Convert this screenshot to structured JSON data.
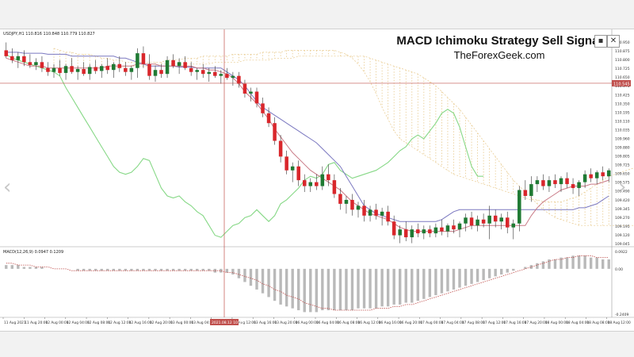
{
  "header": {
    "symbol_info": "USDJPY,H1  110.816 110.848 110.779 110.827",
    "title": "MACD Ichimoku Strategy Sell Signal",
    "website": "TheForexGeek.com",
    "minimize_label": "▪",
    "close_label": "✕"
  },
  "indicator_info": "MACD(12,26,9) 0.0947 0.1209",
  "colors": {
    "bull": "#1f7a33",
    "bear": "#d9262b",
    "kijun": "#7b78c0",
    "tenkan": "#c97a86",
    "chikou": "#86d886",
    "cloud": "#e8c98c",
    "crosshair": "#c0504d",
    "macd_hist": "#b9b9b9",
    "macd_signal": "#c0504d"
  },
  "price_scale": [
    "110.950",
    "110.875",
    "110.800",
    "110.725",
    "110.650",
    "110.575",
    "110.425",
    "110.350",
    "110.195",
    "110.110",
    "110.035",
    "109.960",
    "109.880",
    "109.805",
    "109.725",
    "109.650",
    "109.575",
    "109.490",
    "109.420",
    "109.345",
    "109.270",
    "109.195",
    "109.120",
    "109.045"
  ],
  "price_label": "110.545",
  "macd_scale": {
    "top": "0.0922",
    "zero": "0.00",
    "bottom": "-0.2409"
  },
  "time_labels": [
    "11 Aug 2021",
    "11 Aug 20:00",
    "12 Aug 00:00",
    "12 Aug 04:00",
    "12 Aug 08:00",
    "12 Aug 12:00",
    "12 Aug 16:00",
    "12 Aug 20:00",
    "13 Aug 00:00",
    "13 Aug 04:00",
    "13 Aug 08:00",
    "13 Aug 12:00",
    "13 Aug 16:00",
    "13 Aug 20:00",
    "16 Aug 00:00",
    "16 Aug 04:00",
    "16 Aug 08:00",
    "16 Aug 12:00",
    "16 Aug 16:00",
    "16 Aug 20:00",
    "17 Aug 00:00",
    "17 Aug 04:00",
    "17 Aug 08:00",
    "17 Aug 12:00",
    "17 Aug 16:00",
    "17 Aug 20:00",
    "18 Aug 00:00",
    "18 Aug 04:00",
    "18 Aug 08:00",
    "18 Aug 12:00"
  ],
  "crosshair_time": "2021.08.12 10:00",
  "candles": [
    [
      110.88,
      110.96,
      110.8,
      110.82
    ],
    [
      110.82,
      110.9,
      110.75,
      110.78
    ],
    [
      110.78,
      110.86,
      110.7,
      110.82
    ],
    [
      110.82,
      110.88,
      110.72,
      110.76
    ],
    [
      110.76,
      110.84,
      110.7,
      110.73
    ],
    [
      110.73,
      110.8,
      110.68,
      110.76
    ],
    [
      110.76,
      110.82,
      110.66,
      110.7
    ],
    [
      110.7,
      110.76,
      110.62,
      110.66
    ],
    [
      110.66,
      110.74,
      110.6,
      110.7
    ],
    [
      110.7,
      110.78,
      110.62,
      110.65
    ],
    [
      110.65,
      110.74,
      110.58,
      110.72
    ],
    [
      110.72,
      110.8,
      110.64,
      110.66
    ],
    [
      110.66,
      110.72,
      110.58,
      110.69
    ],
    [
      110.69,
      110.76,
      110.62,
      110.64
    ],
    [
      110.64,
      110.74,
      110.58,
      110.71
    ],
    [
      110.71,
      110.78,
      110.64,
      110.67
    ],
    [
      110.67,
      110.74,
      110.6,
      110.72
    ],
    [
      110.72,
      110.8,
      110.64,
      110.68
    ],
    [
      110.68,
      110.76,
      110.6,
      110.74
    ],
    [
      110.74,
      110.82,
      110.66,
      110.7
    ],
    [
      110.7,
      110.76,
      110.62,
      110.66
    ],
    [
      110.66,
      110.72,
      110.58,
      110.7
    ],
    [
      110.7,
      110.9,
      110.6,
      110.85
    ],
    [
      110.85,
      110.92,
      110.7,
      110.74
    ],
    [
      110.74,
      110.84,
      110.58,
      110.62
    ],
    [
      110.62,
      110.72,
      110.56,
      110.68
    ],
    [
      110.68,
      110.74,
      110.6,
      110.64
    ],
    [
      110.64,
      110.82,
      110.6,
      110.78
    ],
    [
      110.78,
      110.84,
      110.7,
      110.72
    ],
    [
      110.72,
      110.8,
      110.64,
      110.76
    ],
    [
      110.76,
      110.82,
      110.68,
      110.7
    ],
    [
      110.7,
      110.76,
      110.62,
      110.66
    ],
    [
      110.66,
      110.7,
      110.58,
      110.68
    ],
    [
      110.68,
      110.74,
      110.6,
      110.64
    ],
    [
      110.64,
      110.7,
      110.56,
      110.66
    ],
    [
      110.66,
      110.72,
      110.6,
      110.62
    ],
    [
      110.62,
      110.68,
      110.54,
      110.64
    ],
    [
      110.64,
      110.7,
      110.58,
      110.6
    ],
    [
      110.6,
      110.66,
      110.52,
      110.62
    ],
    [
      110.62,
      110.66,
      110.5,
      110.54
    ],
    [
      110.54,
      110.58,
      110.4,
      110.44
    ],
    [
      110.44,
      110.5,
      110.36,
      110.46
    ],
    [
      110.46,
      110.5,
      110.3,
      110.34
    ],
    [
      110.34,
      110.4,
      110.2,
      110.24
    ],
    [
      110.24,
      110.3,
      110.1,
      110.14
    ],
    [
      110.14,
      110.2,
      109.92,
      109.96
    ],
    [
      109.96,
      110.02,
      109.74,
      109.8
    ],
    [
      109.8,
      109.86,
      109.62,
      109.66
    ],
    [
      109.66,
      109.74,
      109.54,
      109.7
    ],
    [
      109.7,
      109.76,
      109.5,
      109.56
    ],
    [
      109.56,
      109.62,
      109.44,
      109.5
    ],
    [
      109.5,
      109.58,
      109.44,
      109.54
    ],
    [
      109.54,
      109.62,
      109.46,
      109.5
    ],
    [
      109.5,
      109.7,
      109.46,
      109.62
    ],
    [
      109.62,
      109.72,
      109.5,
      109.56
    ],
    [
      109.56,
      109.62,
      109.38,
      109.42
    ],
    [
      109.42,
      109.48,
      109.26,
      109.32
    ],
    [
      109.32,
      109.4,
      109.22,
      109.36
    ],
    [
      109.36,
      109.42,
      109.2,
      109.26
    ],
    [
      109.26,
      109.34,
      109.18,
      109.3
    ],
    [
      109.3,
      109.36,
      109.14,
      109.2
    ],
    [
      109.2,
      109.3,
      109.14,
      109.26
    ],
    [
      109.26,
      109.32,
      109.16,
      109.2
    ],
    [
      109.2,
      109.28,
      109.1,
      109.24
    ],
    [
      109.24,
      109.3,
      109.1,
      109.14
    ],
    [
      109.14,
      109.2,
      108.96,
      109.0
    ],
    [
      109.0,
      109.1,
      108.92,
      109.06
    ],
    [
      109.06,
      109.14,
      108.94,
      108.98
    ],
    [
      108.98,
      109.1,
      108.92,
      109.06
    ],
    [
      109.06,
      109.12,
      108.98,
      109.02
    ],
    [
      109.02,
      109.1,
      108.96,
      109.06
    ],
    [
      109.06,
      109.1,
      108.98,
      109.02
    ],
    [
      109.02,
      109.12,
      108.98,
      109.08
    ],
    [
      109.08,
      109.16,
      109.0,
      109.04
    ],
    [
      109.04,
      109.12,
      108.98,
      109.1
    ],
    [
      109.1,
      109.16,
      109.02,
      109.06
    ],
    [
      109.06,
      109.14,
      108.98,
      109.12
    ],
    [
      109.12,
      109.22,
      109.04,
      109.18
    ],
    [
      109.18,
      109.24,
      109.06,
      109.1
    ],
    [
      109.1,
      109.2,
      109.04,
      109.16
    ],
    [
      109.16,
      109.22,
      109.08,
      109.12
    ],
    [
      109.12,
      109.3,
      108.96,
      109.2
    ],
    [
      109.2,
      109.26,
      109.08,
      109.14
    ],
    [
      109.14,
      109.22,
      109.06,
      109.18
    ],
    [
      109.18,
      109.24,
      109.02,
      109.08
    ],
    [
      109.08,
      109.16,
      108.96,
      109.12
    ],
    [
      109.12,
      109.5,
      109.04,
      109.46
    ],
    [
      109.46,
      109.56,
      109.36,
      109.4
    ],
    [
      109.4,
      109.6,
      109.34,
      109.52
    ],
    [
      109.52,
      109.6,
      109.44,
      109.56
    ],
    [
      109.56,
      109.62,
      109.46,
      109.5
    ],
    [
      109.5,
      109.6,
      109.44,
      109.56
    ],
    [
      109.56,
      109.62,
      109.48,
      109.52
    ],
    [
      109.52,
      109.6,
      109.44,
      109.58
    ],
    [
      109.58,
      109.64,
      109.48,
      109.52
    ],
    [
      109.52,
      109.58,
      109.42,
      109.48
    ],
    [
      109.48,
      109.56,
      109.4,
      109.54
    ],
    [
      109.54,
      109.66,
      109.48,
      109.62
    ],
    [
      109.62,
      109.68,
      109.54,
      109.58
    ],
    [
      109.58,
      109.66,
      109.52,
      109.64
    ],
    [
      109.64,
      109.7,
      109.56,
      109.6
    ],
    [
      109.6,
      109.68,
      109.54,
      109.66
    ]
  ],
  "kijun": [
    110.86,
    110.86,
    110.86,
    110.85,
    110.85,
    110.85,
    110.85,
    110.84,
    110.84,
    110.84,
    110.84,
    110.82,
    110.82,
    110.82,
    110.82,
    110.82,
    110.82,
    110.82,
    110.82,
    110.8,
    110.8,
    110.78,
    110.76,
    110.74,
    110.72,
    110.72,
    110.72,
    110.72,
    110.72,
    110.71,
    110.71,
    110.71,
    110.7,
    110.7,
    110.7,
    110.7,
    110.7,
    110.66,
    110.62,
    110.58,
    110.52,
    110.44,
    110.36,
    110.3,
    110.26,
    110.22,
    110.18,
    110.14,
    110.1,
    110.06,
    110.02,
    109.98,
    109.94,
    109.88,
    109.82,
    109.76,
    109.7,
    109.6,
    109.5,
    109.4,
    109.3,
    109.26,
    109.22,
    109.2,
    109.18,
    109.16,
    109.14,
    109.14,
    109.14,
    109.14,
    109.14,
    109.14,
    109.14,
    109.16,
    109.2,
    109.24,
    109.26,
    109.26,
    109.26,
    109.26,
    109.26,
    109.26,
    109.26,
    109.26,
    109.26,
    109.26,
    109.26,
    109.26,
    109.26,
    109.26,
    109.26,
    109.26,
    109.26,
    109.26,
    109.26,
    109.26,
    109.28,
    109.28,
    109.3,
    109.32,
    109.36,
    109.4
  ],
  "tenkan": [
    110.8,
    110.78,
    110.76,
    110.74,
    110.72,
    110.72,
    110.72,
    110.7,
    110.7,
    110.7,
    110.7,
    110.7,
    110.7,
    110.7,
    110.7,
    110.7,
    110.7,
    110.72,
    110.72,
    110.72,
    110.72,
    110.72,
    110.74,
    110.74,
    110.74,
    110.74,
    110.72,
    110.72,
    110.72,
    110.72,
    110.72,
    110.72,
    110.7,
    110.7,
    110.68,
    110.68,
    110.66,
    110.64,
    110.6,
    110.54,
    110.46,
    110.4,
    110.34,
    110.26,
    110.18,
    110.08,
    110.0,
    109.92,
    109.84,
    109.78,
    109.72,
    109.66,
    109.62,
    109.58,
    109.54,
    109.5,
    109.46,
    109.4,
    109.34,
    109.3,
    109.26,
    109.22,
    109.2,
    109.18,
    109.16,
    109.12,
    109.08,
    109.06,
    109.04,
    109.04,
    109.04,
    109.04,
    109.04,
    109.04,
    109.04,
    109.04,
    109.06,
    109.08,
    109.1,
    109.1,
    109.1,
    109.1,
    109.1,
    109.1,
    109.1,
    109.1,
    109.1,
    109.1,
    109.2,
    109.28,
    109.34,
    109.38,
    109.42,
    109.46,
    109.48,
    109.5,
    109.5,
    109.5,
    109.52,
    109.52,
    109.54,
    109.56
  ],
  "chikou": [
    110.84,
    110.8,
    110.78,
    110.76,
    110.74,
    110.72,
    110.7,
    110.68,
    110.66,
    110.62,
    110.5,
    110.4,
    110.3,
    110.2,
    110.1,
    110.0,
    109.9,
    109.8,
    109.7,
    109.64,
    109.62,
    109.64,
    109.7,
    109.78,
    109.76,
    109.62,
    109.48,
    109.4,
    109.38,
    109.4,
    109.34,
    109.3,
    109.24,
    109.2,
    109.1,
    109.0,
    108.98,
    109.04,
    109.1,
    109.12,
    109.18,
    109.2,
    109.26,
    109.2,
    109.14,
    109.2,
    109.32,
    109.36,
    109.42,
    109.48,
    109.56,
    109.6,
    109.58,
    109.62,
    109.72,
    109.74,
    109.66,
    109.62,
    109.58,
    109.6,
    109.62,
    109.64,
    109.66,
    109.7,
    109.74,
    109.8,
    109.86,
    109.9,
    109.98,
    110.02,
    109.98,
    110.06,
    110.14,
    110.24,
    110.28,
    110.24,
    110.1,
    109.9,
    109.7,
    109.6,
    109.6
  ],
  "cloud_a": [
    110.9,
    110.88,
    110.86,
    110.86,
    110.84,
    110.84,
    110.84,
    110.82,
    110.8,
    110.8,
    110.78,
    110.78,
    110.76,
    110.76,
    110.76,
    110.76,
    110.76,
    110.76,
    110.76,
    110.78,
    110.78,
    110.78,
    110.8,
    110.8,
    110.8,
    110.82,
    110.82,
    110.82,
    110.82,
    110.82,
    110.84,
    110.84,
    110.84,
    110.84,
    110.84,
    110.86,
    110.86,
    110.86,
    110.86,
    110.88,
    110.88,
    110.88,
    110.88,
    110.88,
    110.88,
    110.88,
    110.88,
    110.88,
    110.86,
    110.84,
    110.8,
    110.74,
    110.66,
    110.56,
    110.44,
    110.3,
    110.18,
    110.06,
    109.98,
    109.94,
    109.9,
    109.86,
    109.82,
    109.78,
    109.74,
    109.7,
    109.66,
    109.62,
    109.6,
    109.58,
    109.56,
    109.54,
    109.52,
    109.5,
    109.48,
    109.46,
    109.44,
    109.42,
    109.4,
    109.38,
    109.36,
    109.36,
    109.34,
    109.34,
    109.34,
    109.34,
    109.36,
    109.38,
    109.4,
    109.44,
    109.48,
    109.52,
    109.56,
    109.6,
    109.62,
    109.64,
    109.66,
    109.68,
    109.7,
    109.72,
    109.74,
    109.74
  ],
  "cloud_b": [
    110.7,
    110.7,
    110.7,
    110.7,
    110.7,
    110.7,
    110.7,
    110.7,
    110.7,
    110.7,
    110.7,
    110.7,
    110.72,
    110.72,
    110.72,
    110.72,
    110.72,
    110.72,
    110.74,
    110.74,
    110.74,
    110.74,
    110.74,
    110.74,
    110.74,
    110.74,
    110.74,
    110.76,
    110.76,
    110.76,
    110.76,
    110.76,
    110.78,
    110.78,
    110.78,
    110.78,
    110.78,
    110.8,
    110.8,
    110.8,
    110.8,
    110.82,
    110.82,
    110.82,
    110.82,
    110.82,
    110.82,
    110.82,
    110.82,
    110.82,
    110.82,
    110.82,
    110.82,
    110.8,
    110.78,
    110.76,
    110.74,
    110.72,
    110.7,
    110.68,
    110.66,
    110.64,
    110.6,
    110.56,
    110.52,
    110.46,
    110.4,
    110.34,
    110.28,
    110.2,
    110.12,
    110.04,
    109.96,
    109.88,
    109.8,
    109.72,
    109.64,
    109.56,
    109.5,
    109.44,
    109.38,
    109.32,
    109.26,
    109.22,
    109.18,
    109.16,
    109.14,
    109.12,
    109.1,
    109.1,
    109.1,
    109.1,
    109.1,
    109.1,
    109.1,
    109.1,
    109.1,
    109.1,
    109.1,
    109.1,
    109.1,
    109.1
  ],
  "macd_hist": [
    0.02,
    0.02,
    0.02,
    0.01,
    0.01,
    0.01,
    0.01,
    0.0,
    0.0,
    0.0,
    0.0,
    0.0,
    -0.01,
    -0.01,
    -0.01,
    -0.01,
    -0.01,
    -0.01,
    -0.01,
    -0.01,
    -0.01,
    -0.01,
    -0.01,
    -0.01,
    -0.01,
    -0.01,
    -0.01,
    -0.01,
    -0.01,
    -0.01,
    -0.01,
    -0.01,
    -0.01,
    -0.01,
    -0.01,
    -0.02,
    -0.02,
    -0.02,
    -0.03,
    -0.05,
    -0.07,
    -0.09,
    -0.11,
    -0.13,
    -0.15,
    -0.17,
    -0.19,
    -0.2,
    -0.21,
    -0.22,
    -0.23,
    -0.23,
    -0.23,
    -0.22,
    -0.22,
    -0.22,
    -0.22,
    -0.22,
    -0.22,
    -0.21,
    -0.21,
    -0.21,
    -0.21,
    -0.2,
    -0.2,
    -0.19,
    -0.19,
    -0.18,
    -0.18,
    -0.17,
    -0.16,
    -0.15,
    -0.14,
    -0.13,
    -0.12,
    -0.11,
    -0.1,
    -0.09,
    -0.08,
    -0.07,
    -0.06,
    -0.05,
    -0.04,
    -0.03,
    -0.02,
    -0.01,
    0.0,
    0.01,
    0.02,
    0.03,
    0.04,
    0.05,
    0.05,
    0.06,
    0.06,
    0.07,
    0.07,
    0.07,
    0.06,
    0.06,
    0.05,
    0.05
  ],
  "macd_signal": [
    0.03,
    0.03,
    0.02,
    0.02,
    0.02,
    0.01,
    0.01,
    0.01,
    0.0,
    0.0,
    0.0,
    -0.01,
    -0.01,
    -0.01,
    -0.01,
    -0.01,
    -0.01,
    -0.01,
    -0.01,
    -0.01,
    -0.01,
    -0.01,
    -0.01,
    -0.01,
    -0.01,
    -0.01,
    -0.01,
    -0.01,
    -0.01,
    -0.01,
    -0.01,
    -0.01,
    -0.01,
    -0.01,
    -0.01,
    -0.01,
    -0.01,
    -0.02,
    -0.02,
    -0.03,
    -0.04,
    -0.05,
    -0.06,
    -0.08,
    -0.09,
    -0.11,
    -0.12,
    -0.14,
    -0.15,
    -0.16,
    -0.18,
    -0.19,
    -0.2,
    -0.21,
    -0.21,
    -0.22,
    -0.22,
    -0.22,
    -0.22,
    -0.22,
    -0.22,
    -0.22,
    -0.21,
    -0.21,
    -0.21,
    -0.2,
    -0.2,
    -0.19,
    -0.19,
    -0.18,
    -0.17,
    -0.16,
    -0.15,
    -0.14,
    -0.13,
    -0.12,
    -0.11,
    -0.1,
    -0.09,
    -0.08,
    -0.07,
    -0.06,
    -0.05,
    -0.04,
    -0.03,
    -0.02,
    -0.01,
    0.0,
    0.01,
    0.02,
    0.03,
    0.04,
    0.05,
    0.05,
    0.06,
    0.06,
    0.07,
    0.07,
    0.07,
    0.06,
    0.06,
    0.06
  ]
}
